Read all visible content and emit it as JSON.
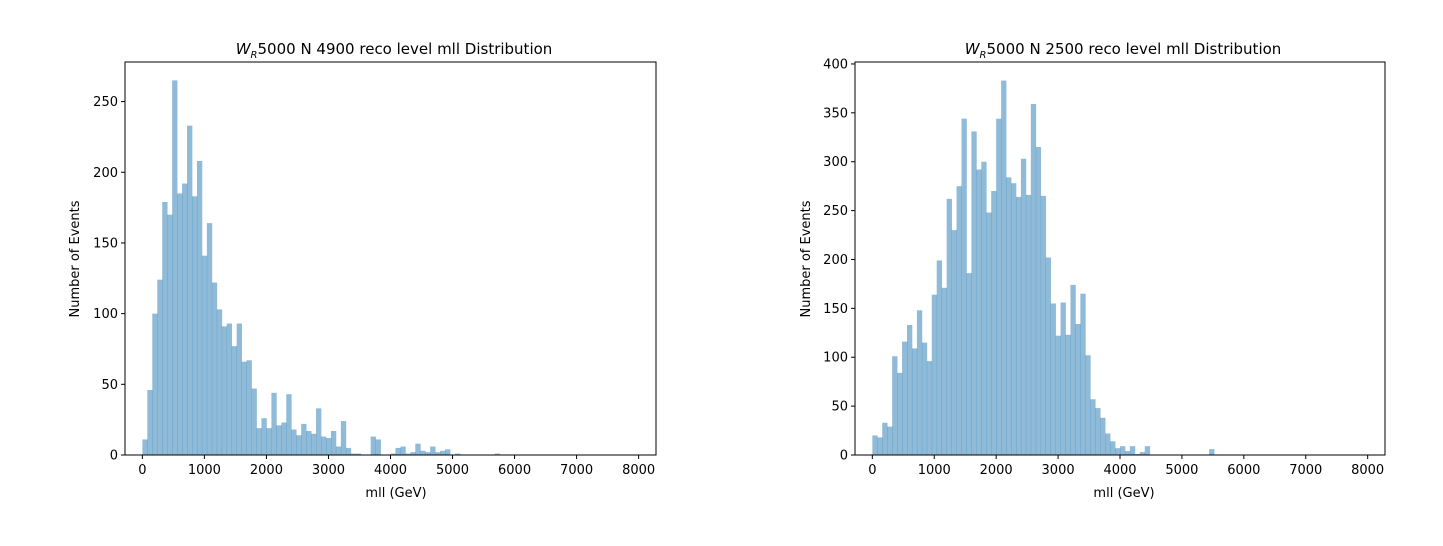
{
  "chart_data": [
    {
      "type": "bar",
      "title_prefix": "W",
      "title_sub": "R",
      "title_rest": "5000 N 4900 reco level mll Distribution",
      "xlabel": "mll (GeV)",
      "ylabel": "Number of Events",
      "xlim": [
        -280,
        8280
      ],
      "ylim": [
        0,
        278
      ],
      "xticks": [
        0,
        1000,
        2000,
        3000,
        4000,
        5000,
        6000,
        7000,
        8000
      ],
      "yticks": [
        0,
        50,
        100,
        150,
        200,
        250
      ],
      "grid": false,
      "bin_width": 80,
      "bin_start": 0,
      "color": "#1f77b4",
      "values": [
        11,
        46,
        100,
        124,
        179,
        170,
        265,
        185,
        192,
        233,
        183,
        208,
        141,
        164,
        122,
        103,
        91,
        93,
        77,
        93,
        66,
        67,
        47,
        19,
        26,
        19,
        44,
        21,
        23,
        43,
        18,
        14,
        22,
        17,
        15,
        33,
        13,
        12,
        17,
        6,
        24,
        5,
        1,
        1,
        0,
        0,
        13,
        11,
        0,
        0,
        1,
        5,
        6,
        1,
        2,
        8,
        3,
        2,
        6,
        2,
        3,
        4,
        0,
        1,
        0,
        0,
        0,
        0,
        0,
        0,
        0,
        1,
        0,
        0,
        0,
        0,
        0,
        0,
        0,
        0,
        0,
        0,
        0,
        0,
        0,
        0,
        0,
        0,
        0,
        0,
        0,
        0,
        0,
        0,
        0,
        0,
        0,
        0,
        0,
        0
      ]
    },
    {
      "type": "bar",
      "title_prefix": "W",
      "title_sub": "R",
      "title_rest": "5000 N 2500 reco level mll Distribution",
      "xlabel": "mll (GeV)",
      "ylabel": "Number of Events",
      "xlim": [
        -280,
        8280
      ],
      "ylim": [
        0,
        402
      ],
      "xticks": [
        0,
        1000,
        2000,
        3000,
        4000,
        5000,
        6000,
        7000,
        8000
      ],
      "yticks": [
        0,
        50,
        100,
        150,
        200,
        250,
        300,
        350,
        400
      ],
      "grid": false,
      "bin_width": 80,
      "bin_start": 0,
      "color": "#1f77b4",
      "values": [
        20,
        18,
        33,
        29,
        101,
        84,
        116,
        133,
        109,
        148,
        115,
        96,
        164,
        199,
        171,
        262,
        230,
        275,
        344,
        186,
        331,
        292,
        300,
        248,
        270,
        344,
        383,
        284,
        278,
        264,
        303,
        266,
        359,
        315,
        265,
        202,
        155,
        122,
        156,
        123,
        174,
        134,
        165,
        102,
        57,
        48,
        38,
        22,
        14,
        7,
        9,
        4,
        9,
        1,
        3,
        9,
        0,
        0,
        0,
        0,
        0,
        0,
        0,
        0,
        0,
        0,
        0,
        0,
        6,
        0,
        0,
        0,
        0,
        0,
        0,
        0,
        0,
        0,
        0,
        0,
        0,
        0,
        0,
        0,
        0,
        0,
        0,
        0,
        0,
        0,
        0,
        0,
        0,
        0,
        0,
        0,
        0,
        0,
        0,
        0
      ]
    }
  ]
}
